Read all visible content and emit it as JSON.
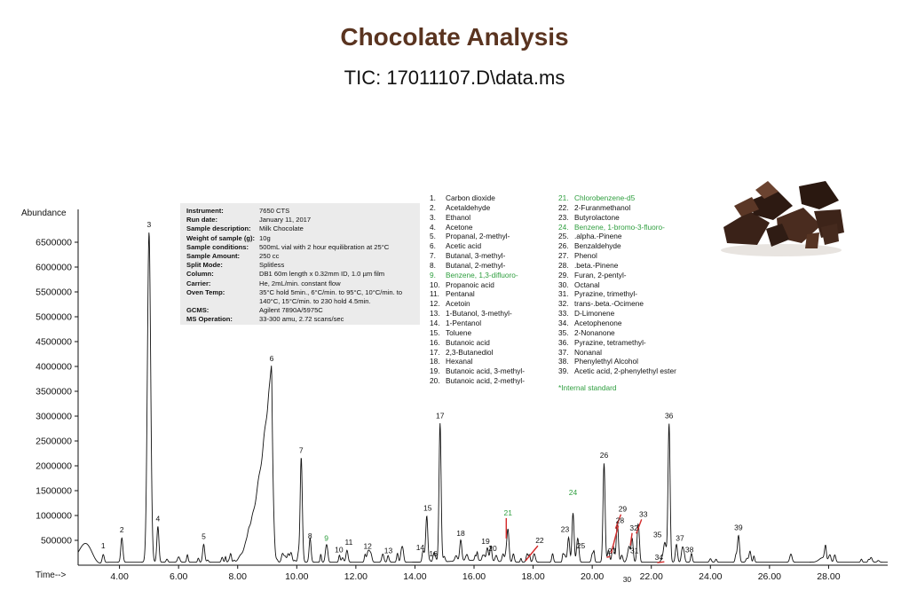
{
  "header": {
    "title": "Chocolate Analysis",
    "subtitle": "TIC: 17011107.D\\data.ms"
  },
  "info": [
    {
      "label": "Instrument:",
      "value": "7650 CTS"
    },
    {
      "label": "Run date:",
      "value": "January 11, 2017"
    },
    {
      "label": "Sample description:",
      "value": "Milk Chocolate"
    },
    {
      "label": "Weight of sample (g):",
      "value": "10g"
    },
    {
      "label": "Sample conditions:",
      "value": "500mL vial with 2 hour equilibration at 25°C"
    },
    {
      "label": "Sample Amount:",
      "value": "250 cc"
    },
    {
      "label": "Split Mode:",
      "value": "Splitless"
    },
    {
      "label": "Column:",
      "value": "DB1 60m length x 0.32mm ID, 1.0 µm film"
    },
    {
      "label": "Carrier:",
      "value": "He, 2mL/min. constant flow"
    },
    {
      "label": "Oven Temp:",
      "value": "35°C hold 5min., 6°C/min. to 95°C, 10°C/min. to 140°C, 15°C/min. to 230 hold 4.5min."
    },
    {
      "label": "GCMS:",
      "value": "Agilent 7890A/5975C"
    },
    {
      "label": "MS Operation:",
      "value": "33-300 amu, 2.72 scans/sec"
    }
  ],
  "compounds": [
    {
      "num": "1.",
      "name": "Carbon dioxide"
    },
    {
      "num": "2.",
      "name": "Acetaldehyde"
    },
    {
      "num": "3.",
      "name": "Ethanol"
    },
    {
      "num": "4.",
      "name": "Acetone"
    },
    {
      "num": "5.",
      "name": "Propanal, 2-methyl-"
    },
    {
      "num": "6.",
      "name": "Acetic acid"
    },
    {
      "num": "7.",
      "name": "Butanal, 3-methyl-"
    },
    {
      "num": "8.",
      "name": "Butanal, 2-methyl-"
    },
    {
      "num": "9.",
      "name": "Benzene, 1,3-difluoro-",
      "internal_standard": true
    },
    {
      "num": "10.",
      "name": "Propanoic acid"
    },
    {
      "num": "11.",
      "name": "Pentanal"
    },
    {
      "num": "12.",
      "name": "Acetoin"
    },
    {
      "num": "13.",
      "name": "1-Butanol, 3-methyl-"
    },
    {
      "num": "14.",
      "name": "1-Pentanol"
    },
    {
      "num": "15.",
      "name": "Toluene"
    },
    {
      "num": "16.",
      "name": "Butanoic acid"
    },
    {
      "num": "17.",
      "name": "2,3-Butanediol"
    },
    {
      "num": "18.",
      "name": "Hexanal"
    },
    {
      "num": "19.",
      "name": "Butanoic acid, 3-methyl-"
    },
    {
      "num": "20.",
      "name": "Butanoic acid, 2-methyl-"
    },
    {
      "num": "21.",
      "name": "Chlorobenzene-d5",
      "internal_standard": true
    },
    {
      "num": "22.",
      "name": "2-Furanmethanol"
    },
    {
      "num": "23.",
      "name": "Butyrolactone"
    },
    {
      "num": "24.",
      "name": "Benzene, 1-bromo-3-fluoro-",
      "internal_standard": true
    },
    {
      "num": "25.",
      "name": ".alpha.-Pinene"
    },
    {
      "num": "26.",
      "name": "Benzaldehyde"
    },
    {
      "num": "27.",
      "name": "Phenol"
    },
    {
      "num": "28.",
      "name": ".beta.-Pinene"
    },
    {
      "num": "29.",
      "name": "Furan, 2-pentyl-"
    },
    {
      "num": "30.",
      "name": "Octanal"
    },
    {
      "num": "31.",
      "name": "Pyrazine, trimethyl-"
    },
    {
      "num": "32.",
      "name": "trans-.beta.-Ocimene"
    },
    {
      "num": "33.",
      "name": "D-Limonene"
    },
    {
      "num": "34.",
      "name": "Acetophenone"
    },
    {
      "num": "35.",
      "name": "2-Nonanone"
    },
    {
      "num": "36.",
      "name": "Pyrazine, tetramethyl-"
    },
    {
      "num": "37.",
      "name": "Nonanal"
    },
    {
      "num": "38.",
      "name": "Phenylethyl Alcohol"
    },
    {
      "num": "39.",
      "name": "Acetic acid, 2-phenylethyl ester"
    }
  ],
  "footnote": "*Internal standard",
  "colors": {
    "title": "#5a3420",
    "internal_standard": "#2e9e3e",
    "callout_line": "#d42a2a",
    "trace": "#111111"
  },
  "chart_data": {
    "type": "line",
    "title": "TIC: 17011107.D\\data.ms",
    "xlabel": "Time-->",
    "ylabel": "Abundance",
    "xlim": [
      2.6,
      30.0
    ],
    "ylim": [
      0,
      7000000
    ],
    "x_ticks": [
      "4.00",
      "6.00",
      "8.00",
      "10.00",
      "12.00",
      "14.00",
      "16.00",
      "18.00",
      "20.00",
      "22.00",
      "24.00",
      "26.00",
      "28.00"
    ],
    "y_ticks": [
      "500000",
      "1000000",
      "1500000",
      "2000000",
      "2500000",
      "3000000",
      "3500000",
      "4000000",
      "4500000",
      "5000000",
      "5500000",
      "6000000",
      "6500000"
    ],
    "grid": false,
    "baseline": 60000,
    "peaks": [
      {
        "label": "1",
        "x": 3.45,
        "y": 230000
      },
      {
        "label": "2",
        "x": 4.08,
        "y": 550000
      },
      {
        "label": "3",
        "x": 5.0,
        "y": 6700000
      },
      {
        "label": "4",
        "x": 5.3,
        "y": 780000
      },
      {
        "label": "5",
        "x": 6.85,
        "y": 420000
      },
      {
        "label": "6",
        "x": 9.15,
        "y": 4000000
      },
      {
        "label": "7",
        "x": 10.15,
        "y": 2150000
      },
      {
        "label": "8",
        "x": 10.45,
        "y": 430000
      },
      {
        "label": "9",
        "x": 11.0,
        "y": 380000,
        "internal_standard": true
      },
      {
        "label": "10",
        "x": 11.55,
        "y": 150000
      },
      {
        "label": "11",
        "x": 11.7,
        "y": 300000
      },
      {
        "label": "12",
        "x": 12.4,
        "y": 220000
      },
      {
        "label": "13",
        "x": 13.1,
        "y": 130000
      },
      {
        "label": "14",
        "x": 14.3,
        "y": 200000
      },
      {
        "label": "15",
        "x": 14.4,
        "y": 990000
      },
      {
        "label": "16",
        "x": 14.65,
        "y": 140000
      },
      {
        "label": "17",
        "x": 14.85,
        "y": 2850000
      },
      {
        "label": "18",
        "x": 15.55,
        "y": 480000
      },
      {
        "label": "19",
        "x": 16.45,
        "y": 320000
      },
      {
        "label": "20",
        "x": 16.75,
        "y": 180000
      },
      {
        "label": "21",
        "x": 17.15,
        "y": 680000,
        "internal_standard": true
      },
      {
        "label": "22",
        "x": 17.8,
        "y": 230000
      },
      {
        "label": "23",
        "x": 19.2,
        "y": 560000
      },
      {
        "label": "24",
        "x": 19.35,
        "y": 1050000,
        "internal_standard": true
      },
      {
        "label": "25",
        "x": 19.5,
        "y": 450000
      },
      {
        "label": "26",
        "x": 20.4,
        "y": 2050000
      },
      {
        "label": "27",
        "x": 20.55,
        "y": 300000
      },
      {
        "label": "28",
        "x": 20.7,
        "y": 380000
      },
      {
        "label": "29",
        "x": 20.85,
        "y": 880000
      },
      {
        "label": "30",
        "x": 21.0,
        "y": 200000
      },
      {
        "label": "31",
        "x": 21.25,
        "y": 350000
      },
      {
        "label": "32",
        "x": 21.35,
        "y": 540000
      },
      {
        "label": "33",
        "x": 21.55,
        "y": 780000
      },
      {
        "label": "34",
        "x": 22.5,
        "y": 210000
      },
      {
        "label": "35",
        "x": 22.45,
        "y": 380000
      },
      {
        "label": "36",
        "x": 22.6,
        "y": 2850000
      },
      {
        "label": "37",
        "x": 22.85,
        "y": 420000
      },
      {
        "label": "38",
        "x": 23.05,
        "y": 330000
      },
      {
        "label": "39",
        "x": 24.95,
        "y": 600000
      }
    ]
  }
}
